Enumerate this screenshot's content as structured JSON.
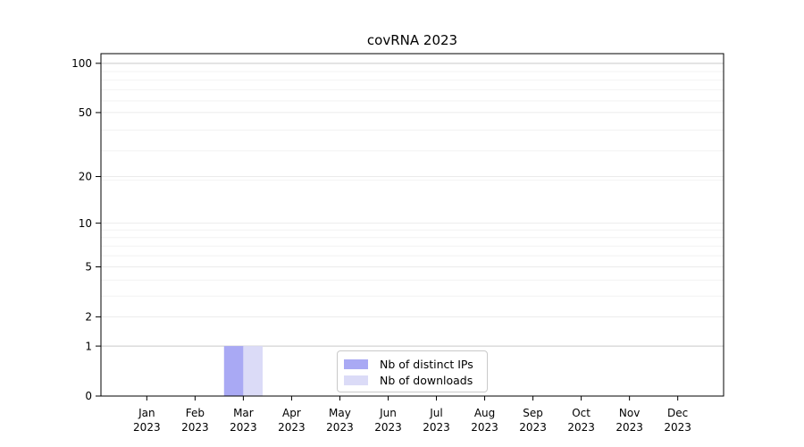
{
  "title": "covRNA 2023",
  "colors": {
    "bar_distinct_ips": "#a9a9f4",
    "bar_downloads": "#dbdbf7",
    "grid_emphasis": "#c9c9c9",
    "grid_major": "#ebebeb",
    "grid_minor": "#f2f2f2",
    "axis": "#000000"
  },
  "legend": {
    "items": [
      {
        "label": "Nb of distinct IPs",
        "color": "#a9a9f4"
      },
      {
        "label": "Nb of downloads",
        "color": "#dbdbf7"
      }
    ]
  },
  "chart_data": {
    "type": "bar",
    "title": "covRNA 2023",
    "categories": [
      "Jan",
      "Feb",
      "Mar",
      "Apr",
      "May",
      "Jun",
      "Jul",
      "Aug",
      "Sep",
      "Oct",
      "Nov",
      "Dec"
    ],
    "category_year": "2023",
    "series": [
      {
        "name": "Nb of distinct IPs",
        "color": "#a9a9f4",
        "values": [
          0,
          0,
          1,
          0,
          0,
          0,
          0,
          0,
          0,
          0,
          0,
          0
        ]
      },
      {
        "name": "Nb of downloads",
        "color": "#dbdbf7",
        "values": [
          0,
          0,
          1,
          0,
          0,
          0,
          0,
          0,
          0,
          0,
          0,
          0
        ]
      }
    ],
    "xlabel": "",
    "ylabel": "",
    "yscale": "log1p",
    "yticks": [
      0,
      1,
      2,
      5,
      10,
      20,
      50,
      100
    ],
    "ylim": [
      0,
      114.5
    ],
    "xlim": [
      -0.95,
      11.95
    ],
    "bar_width_units": 0.4,
    "grid": {
      "orientation": "horizontal",
      "emphasis_values": [
        1,
        100
      ],
      "major_values": [
        2,
        5,
        10,
        20,
        50
      ],
      "minor_values": [
        3,
        4,
        6,
        7,
        8,
        9,
        19,
        29,
        39,
        59,
        69,
        79,
        89
      ]
    },
    "legend_position": "inside lower-center"
  }
}
